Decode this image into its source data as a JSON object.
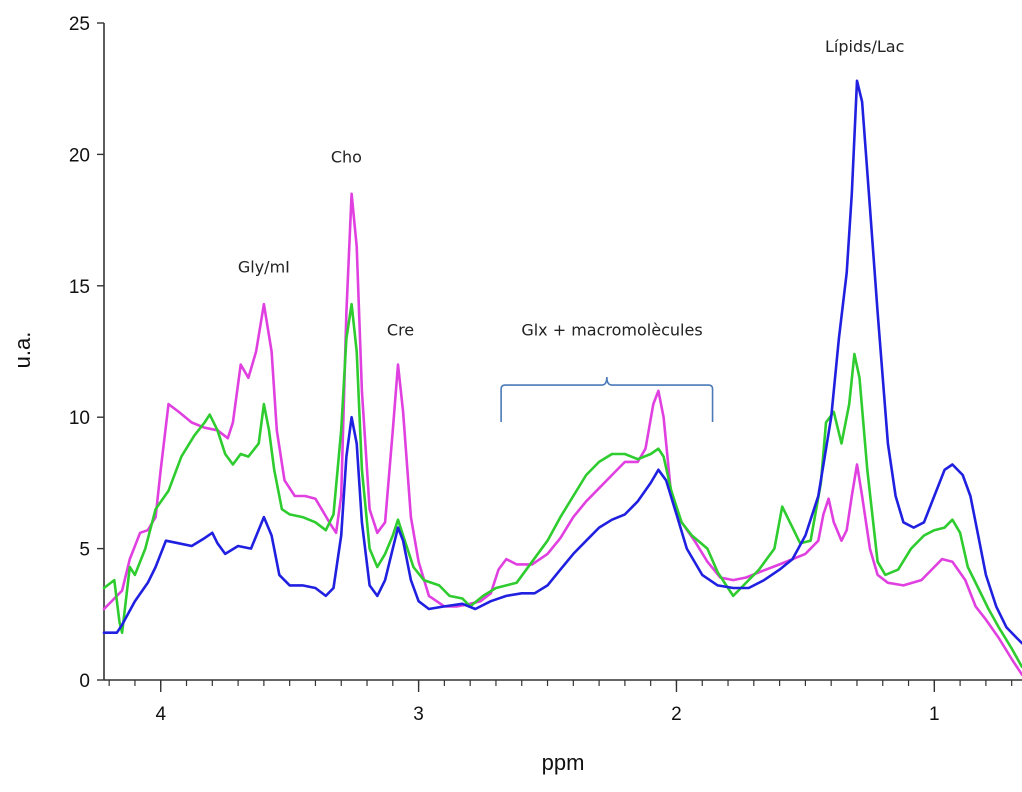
{
  "chart_data": {
    "type": "line",
    "title": "",
    "xlabel": "ppm",
    "ylabel": "u.a.",
    "x_reversed": true,
    "xlim": [
      4.22,
      0.66
    ],
    "ylim": [
      0,
      25
    ],
    "x_ticks": [
      "4",
      "3",
      "2",
      "1"
    ],
    "y_ticks": [
      "0",
      "5",
      "10",
      "15",
      "20",
      "25"
    ],
    "grid": false,
    "legend": "none",
    "annotations": [
      {
        "text": "Gly/mI",
        "x": 3.6,
        "y": 15.5
      },
      {
        "text": "Cho",
        "x": 3.28,
        "y": 19.7
      },
      {
        "text": "Cre",
        "x": 3.07,
        "y": 13.1
      },
      {
        "text": "Glx + macromolècules",
        "x": 2.25,
        "y": 13.1
      },
      {
        "text": "Lípids/Lac",
        "x": 1.27,
        "y": 23.9
      }
    ],
    "bracket": {
      "x_start": 2.68,
      "x_end": 1.86,
      "y": 10.5,
      "color": "#4a7ab8"
    },
    "series": [
      {
        "color": "#e040e0",
        "points": [
          [
            4.22,
            2.7
          ],
          [
            4.17,
            3.2
          ],
          [
            4.15,
            3.4
          ],
          [
            4.12,
            4.6
          ],
          [
            4.08,
            5.6
          ],
          [
            4.05,
            5.7
          ],
          [
            4.02,
            6.2
          ],
          [
            4.0,
            8.0
          ],
          [
            3.97,
            10.5
          ],
          [
            3.93,
            10.2
          ],
          [
            3.88,
            9.8
          ],
          [
            3.83,
            9.6
          ],
          [
            3.78,
            9.5
          ],
          [
            3.74,
            9.2
          ],
          [
            3.72,
            9.8
          ],
          [
            3.69,
            12.0
          ],
          [
            3.66,
            11.5
          ],
          [
            3.63,
            12.5
          ],
          [
            3.6,
            14.3
          ],
          [
            3.57,
            12.5
          ],
          [
            3.55,
            9.5
          ],
          [
            3.52,
            7.6
          ],
          [
            3.48,
            7.0
          ],
          [
            3.44,
            7.0
          ],
          [
            3.4,
            6.9
          ],
          [
            3.37,
            6.4
          ],
          [
            3.34,
            5.9
          ],
          [
            3.32,
            5.6
          ],
          [
            3.3,
            7.0
          ],
          [
            3.28,
            14.0
          ],
          [
            3.26,
            18.5
          ],
          [
            3.24,
            16.5
          ],
          [
            3.22,
            11.0
          ],
          [
            3.19,
            6.5
          ],
          [
            3.16,
            5.6
          ],
          [
            3.13,
            6.0
          ],
          [
            3.1,
            9.5
          ],
          [
            3.08,
            12.0
          ],
          [
            3.06,
            10.2
          ],
          [
            3.03,
            6.2
          ],
          [
            3.0,
            4.5
          ],
          [
            2.96,
            3.2
          ],
          [
            2.9,
            2.8
          ],
          [
            2.85,
            2.8
          ],
          [
            2.8,
            2.9
          ],
          [
            2.76,
            3.0
          ],
          [
            2.72,
            3.3
          ],
          [
            2.69,
            4.2
          ],
          [
            2.66,
            4.6
          ],
          [
            2.62,
            4.4
          ],
          [
            2.56,
            4.4
          ],
          [
            2.5,
            4.8
          ],
          [
            2.45,
            5.4
          ],
          [
            2.4,
            6.2
          ],
          [
            2.35,
            6.8
          ],
          [
            2.3,
            7.3
          ],
          [
            2.25,
            7.8
          ],
          [
            2.2,
            8.3
          ],
          [
            2.15,
            8.3
          ],
          [
            2.12,
            8.8
          ],
          [
            2.09,
            10.5
          ],
          [
            2.07,
            11.0
          ],
          [
            2.05,
            10.0
          ],
          [
            2.02,
            7.0
          ],
          [
            1.98,
            6.0
          ],
          [
            1.93,
            5.3
          ],
          [
            1.88,
            4.5
          ],
          [
            1.83,
            3.9
          ],
          [
            1.78,
            3.8
          ],
          [
            1.73,
            3.9
          ],
          [
            1.68,
            4.1
          ],
          [
            1.6,
            4.4
          ],
          [
            1.5,
            4.8
          ],
          [
            1.45,
            5.3
          ],
          [
            1.43,
            6.3
          ],
          [
            1.41,
            6.9
          ],
          [
            1.39,
            6.0
          ],
          [
            1.36,
            5.3
          ],
          [
            1.34,
            5.7
          ],
          [
            1.32,
            7.0
          ],
          [
            1.3,
            8.2
          ],
          [
            1.28,
            7.0
          ],
          [
            1.25,
            5.0
          ],
          [
            1.22,
            4.0
          ],
          [
            1.18,
            3.7
          ],
          [
            1.12,
            3.6
          ],
          [
            1.05,
            3.8
          ],
          [
            1.0,
            4.3
          ],
          [
            0.97,
            4.6
          ],
          [
            0.93,
            4.5
          ],
          [
            0.88,
            3.8
          ],
          [
            0.84,
            2.8
          ],
          [
            0.8,
            2.3
          ],
          [
            0.75,
            1.6
          ],
          [
            0.7,
            0.8
          ],
          [
            0.66,
            0.2
          ]
        ]
      },
      {
        "color": "#2ecc2e",
        "points": [
          [
            4.22,
            3.5
          ],
          [
            4.18,
            3.8
          ],
          [
            4.16,
            2.2
          ],
          [
            4.15,
            1.8
          ],
          [
            4.12,
            4.3
          ],
          [
            4.1,
            4.0
          ],
          [
            4.06,
            5.0
          ],
          [
            4.02,
            6.5
          ],
          [
            3.97,
            7.2
          ],
          [
            3.92,
            8.5
          ],
          [
            3.87,
            9.3
          ],
          [
            3.83,
            9.8
          ],
          [
            3.81,
            10.1
          ],
          [
            3.78,
            9.5
          ],
          [
            3.75,
            8.6
          ],
          [
            3.72,
            8.2
          ],
          [
            3.69,
            8.6
          ],
          [
            3.66,
            8.5
          ],
          [
            3.62,
            9.0
          ],
          [
            3.6,
            10.5
          ],
          [
            3.58,
            9.5
          ],
          [
            3.56,
            8.0
          ],
          [
            3.53,
            6.5
          ],
          [
            3.5,
            6.3
          ],
          [
            3.45,
            6.2
          ],
          [
            3.4,
            6.0
          ],
          [
            3.36,
            5.7
          ],
          [
            3.33,
            6.3
          ],
          [
            3.3,
            9.5
          ],
          [
            3.28,
            13.0
          ],
          [
            3.26,
            14.3
          ],
          [
            3.24,
            12.5
          ],
          [
            3.22,
            8.0
          ],
          [
            3.19,
            5.0
          ],
          [
            3.16,
            4.3
          ],
          [
            3.13,
            4.8
          ],
          [
            3.1,
            5.5
          ],
          [
            3.08,
            6.1
          ],
          [
            3.06,
            5.5
          ],
          [
            3.02,
            4.3
          ],
          [
            2.98,
            3.8
          ],
          [
            2.92,
            3.6
          ],
          [
            2.88,
            3.2
          ],
          [
            2.83,
            3.1
          ],
          [
            2.8,
            2.8
          ],
          [
            2.75,
            3.2
          ],
          [
            2.7,
            3.5
          ],
          [
            2.62,
            3.7
          ],
          [
            2.56,
            4.5
          ],
          [
            2.5,
            5.3
          ],
          [
            2.45,
            6.2
          ],
          [
            2.4,
            7.0
          ],
          [
            2.35,
            7.8
          ],
          [
            2.3,
            8.3
          ],
          [
            2.25,
            8.6
          ],
          [
            2.2,
            8.6
          ],
          [
            2.15,
            8.4
          ],
          [
            2.1,
            8.6
          ],
          [
            2.07,
            8.8
          ],
          [
            2.05,
            8.5
          ],
          [
            2.02,
            7.2
          ],
          [
            1.98,
            6.0
          ],
          [
            1.94,
            5.5
          ],
          [
            1.88,
            5.0
          ],
          [
            1.84,
            4.1
          ],
          [
            1.8,
            3.5
          ],
          [
            1.78,
            3.2
          ],
          [
            1.74,
            3.6
          ],
          [
            1.68,
            4.2
          ],
          [
            1.62,
            5.0
          ],
          [
            1.59,
            6.6
          ],
          [
            1.56,
            6.0
          ],
          [
            1.52,
            5.2
          ],
          [
            1.48,
            5.3
          ],
          [
            1.44,
            7.5
          ],
          [
            1.42,
            9.8
          ],
          [
            1.39,
            10.2
          ],
          [
            1.36,
            9.0
          ],
          [
            1.33,
            10.5
          ],
          [
            1.31,
            12.4
          ],
          [
            1.29,
            11.5
          ],
          [
            1.26,
            8.0
          ],
          [
            1.22,
            4.5
          ],
          [
            1.19,
            4.0
          ],
          [
            1.14,
            4.2
          ],
          [
            1.09,
            5.0
          ],
          [
            1.04,
            5.5
          ],
          [
            1.0,
            5.7
          ],
          [
            0.96,
            5.8
          ],
          [
            0.93,
            6.1
          ],
          [
            0.9,
            5.6
          ],
          [
            0.87,
            4.3
          ],
          [
            0.83,
            3.5
          ],
          [
            0.79,
            2.7
          ],
          [
            0.75,
            2.0
          ],
          [
            0.7,
            1.2
          ],
          [
            0.66,
            0.5
          ]
        ]
      },
      {
        "color": "#2020e0",
        "points": [
          [
            4.22,
            1.8
          ],
          [
            4.17,
            1.8
          ],
          [
            4.15,
            2.1
          ],
          [
            4.1,
            3.0
          ],
          [
            4.05,
            3.7
          ],
          [
            4.02,
            4.3
          ],
          [
            3.98,
            5.3
          ],
          [
            3.93,
            5.2
          ],
          [
            3.88,
            5.1
          ],
          [
            3.83,
            5.4
          ],
          [
            3.8,
            5.6
          ],
          [
            3.78,
            5.2
          ],
          [
            3.75,
            4.8
          ],
          [
            3.7,
            5.1
          ],
          [
            3.65,
            5.0
          ],
          [
            3.6,
            6.2
          ],
          [
            3.57,
            5.5
          ],
          [
            3.54,
            4.0
          ],
          [
            3.5,
            3.6
          ],
          [
            3.45,
            3.6
          ],
          [
            3.4,
            3.5
          ],
          [
            3.36,
            3.2
          ],
          [
            3.33,
            3.5
          ],
          [
            3.3,
            5.5
          ],
          [
            3.28,
            8.5
          ],
          [
            3.26,
            10.0
          ],
          [
            3.24,
            9.0
          ],
          [
            3.22,
            6.0
          ],
          [
            3.19,
            3.6
          ],
          [
            3.16,
            3.2
          ],
          [
            3.13,
            3.8
          ],
          [
            3.1,
            5.0
          ],
          [
            3.08,
            5.8
          ],
          [
            3.06,
            5.3
          ],
          [
            3.03,
            3.8
          ],
          [
            3.0,
            3.0
          ],
          [
            2.96,
            2.7
          ],
          [
            2.9,
            2.8
          ],
          [
            2.83,
            2.9
          ],
          [
            2.78,
            2.7
          ],
          [
            2.72,
            3.0
          ],
          [
            2.66,
            3.2
          ],
          [
            2.6,
            3.3
          ],
          [
            2.55,
            3.3
          ],
          [
            2.5,
            3.6
          ],
          [
            2.45,
            4.2
          ],
          [
            2.4,
            4.8
          ],
          [
            2.35,
            5.3
          ],
          [
            2.3,
            5.8
          ],
          [
            2.25,
            6.1
          ],
          [
            2.2,
            6.3
          ],
          [
            2.15,
            6.8
          ],
          [
            2.1,
            7.5
          ],
          [
            2.07,
            8.0
          ],
          [
            2.04,
            7.6
          ],
          [
            2.0,
            6.3
          ],
          [
            1.96,
            5.0
          ],
          [
            1.9,
            4.0
          ],
          [
            1.84,
            3.6
          ],
          [
            1.78,
            3.5
          ],
          [
            1.72,
            3.5
          ],
          [
            1.66,
            3.8
          ],
          [
            1.6,
            4.2
          ],
          [
            1.55,
            4.6
          ],
          [
            1.5,
            5.5
          ],
          [
            1.45,
            7.0
          ],
          [
            1.4,
            10.0
          ],
          [
            1.37,
            13.0
          ],
          [
            1.34,
            15.5
          ],
          [
            1.32,
            18.5
          ],
          [
            1.3,
            22.8
          ],
          [
            1.28,
            22.0
          ],
          [
            1.25,
            18.0
          ],
          [
            1.22,
            14.0
          ],
          [
            1.18,
            9.0
          ],
          [
            1.15,
            7.0
          ],
          [
            1.12,
            6.0
          ],
          [
            1.08,
            5.8
          ],
          [
            1.04,
            6.0
          ],
          [
            1.0,
            7.0
          ],
          [
            0.96,
            8.0
          ],
          [
            0.93,
            8.2
          ],
          [
            0.89,
            7.8
          ],
          [
            0.86,
            7.0
          ],
          [
            0.83,
            5.5
          ],
          [
            0.8,
            4.0
          ],
          [
            0.76,
            2.8
          ],
          [
            0.72,
            2.0
          ],
          [
            0.68,
            1.6
          ],
          [
            0.66,
            1.4
          ]
        ]
      }
    ]
  }
}
